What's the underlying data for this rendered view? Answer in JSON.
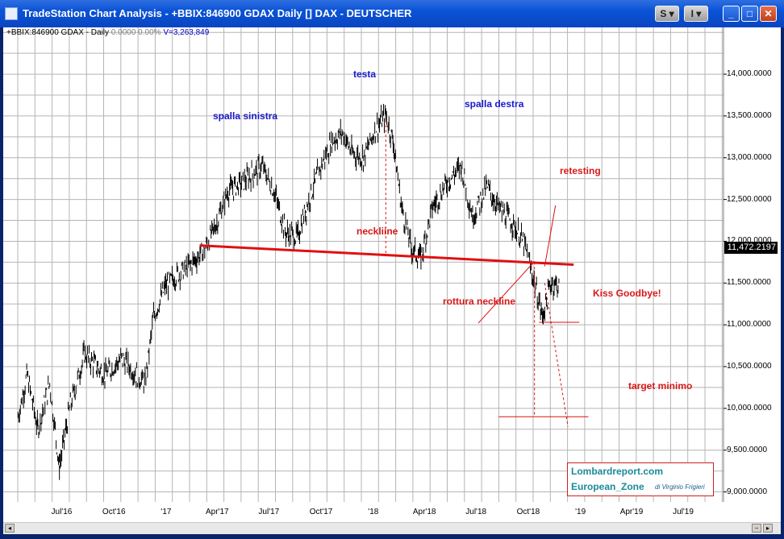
{
  "window": {
    "title": "TradeStation Chart Analysis - +BBIX:846900 GDAX Daily [] DAX - DEUTSCHER",
    "buttons": {
      "s_label": "S ▾",
      "i_label": "I ▾",
      "minimize": "_",
      "maximize": "□",
      "close": "✕"
    }
  },
  "info": {
    "symbol": "+BBIX:846900 GDAX - Daily",
    "change": "0.0000",
    "percent": "0.00%",
    "volume": "V=3,263,849"
  },
  "price_box": "11,472.2197",
  "y_axis": {
    "labels": [
      "14,000.0000",
      "13,500.0000",
      "13,000.0000",
      "12,500.0000",
      "12,000.0000",
      "11,500.0000",
      "11,000.0000",
      "10,500.0000",
      "10,000.0000",
      "9,500.0000",
      "9,000.0000"
    ]
  },
  "x_axis": {
    "labels": [
      "Jul'16",
      "Oct'16",
      "'17",
      "Apr'17",
      "Jul'17",
      "Oct'17",
      "'18",
      "Apr'18",
      "Jul'18",
      "Oct'18",
      "'19",
      "Apr'19",
      "Jul'19"
    ]
  },
  "annotations": {
    "left_shoulder": "spalla sinistra",
    "head": "testa",
    "right_shoulder": "spalla destra",
    "neckline": "neckliine",
    "retesting": "retesting",
    "breakout": "rottura neckline",
    "kiss": "Kiss Goodbye!",
    "target": "target minimo"
  },
  "logo": {
    "line1": "Lombardreport.com",
    "line2": "European_Zone",
    "byline": "di Virginio Frigieri"
  },
  "colors": {
    "titlebar": "#0a53d6",
    "price_series": "#000000",
    "neckline": "#e01010",
    "annotation_red": "#d81818",
    "annotation_blue": "#1818cc",
    "grid": "#b0b0b0",
    "logo_text": "#1a8a9a"
  },
  "chart_data": {
    "type": "line",
    "title": "",
    "xlabel": "",
    "ylabel": "",
    "ylim": [
      8880,
      14560
    ],
    "series": [
      {
        "style": "ohlc-bars",
        "x": [
          "2016-04-15",
          "2016-05-01",
          "2016-05-20",
          "2016-06-10",
          "2016-06-27",
          "2016-07-15",
          "2016-08-10",
          "2016-09-15",
          "2016-10-15",
          "2016-11-10",
          "2016-11-25",
          "2016-12-10",
          "2016-12-30",
          "2017-01-20",
          "2017-02-10",
          "2017-03-10",
          "2017-03-30",
          "2017-04-20",
          "2017-05-15",
          "2017-06-19",
          "2017-07-10",
          "2017-07-31",
          "2017-08-20",
          "2017-09-05",
          "2017-09-25",
          "2017-10-20",
          "2017-11-07",
          "2017-11-25",
          "2017-12-15",
          "2018-01-05",
          "2018-01-23",
          "2018-02-05",
          "2018-02-20",
          "2018-03-10",
          "2018-03-26",
          "2018-04-15",
          "2018-05-10",
          "2018-06-05",
          "2018-06-25",
          "2018-07-20",
          "2018-08-10",
          "2018-09-05",
          "2018-09-25",
          "2018-10-10",
          "2018-10-26",
          "2018-11-10",
          "2018-11-25"
        ],
        "y": [
          9900,
          10400,
          9750,
          10300,
          9300,
          10000,
          10650,
          10400,
          10600,
          10400,
          10300,
          11100,
          11450,
          11600,
          11700,
          11900,
          12200,
          12600,
          12700,
          12900,
          12600,
          12100,
          12050,
          12400,
          12800,
          13200,
          13300,
          13050,
          13000,
          13350,
          13500,
          13200,
          12400,
          11900,
          11800,
          12400,
          12700,
          12900,
          12300,
          12650,
          12400,
          12200,
          11950,
          11550,
          11100,
          11500,
          11470
        ]
      },
      {
        "name": "neckline",
        "style": "trendline",
        "x": [
          "2017-03-01",
          "2018-12-20"
        ],
        "y": [
          11950,
          11720
        ]
      }
    ],
    "levels": [
      {
        "label": "Kiss Goodbye!",
        "y": 11030
      },
      {
        "label": "target minimo",
        "y": 9900
      }
    ]
  }
}
